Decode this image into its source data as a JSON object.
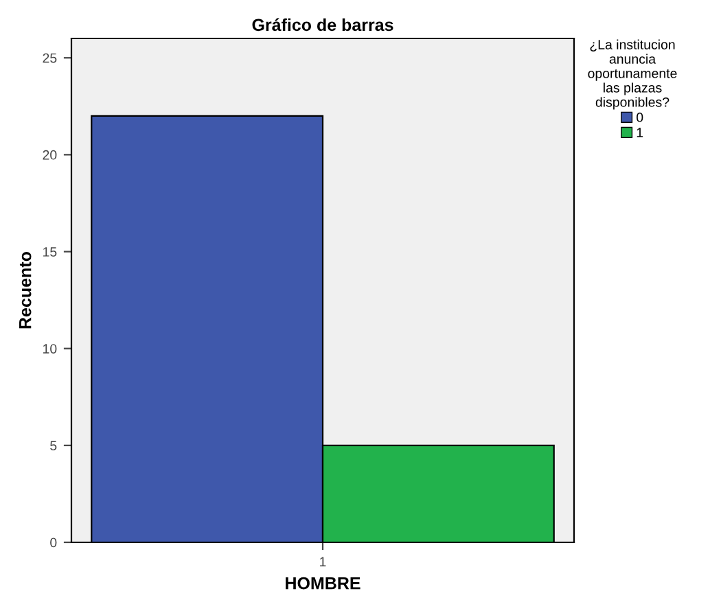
{
  "chart_data": {
    "type": "bar",
    "title": "Gráfico de barras",
    "xlabel": "HOMBRE",
    "ylabel": "Recuento",
    "legend_title": "¿La institucion\nanuncia\noportunamente\nlas plazas\ndisponibles?",
    "categories": [
      "1"
    ],
    "series": [
      {
        "name": "0",
        "color": "#3f58ab",
        "values": [
          22
        ]
      },
      {
        "name": "1",
        "color": "#22b24c",
        "values": [
          5
        ]
      }
    ],
    "ylim": [
      0,
      26
    ],
    "yticks": [
      0,
      5,
      10,
      15,
      20,
      25
    ],
    "grid": false,
    "legend": "right"
  }
}
